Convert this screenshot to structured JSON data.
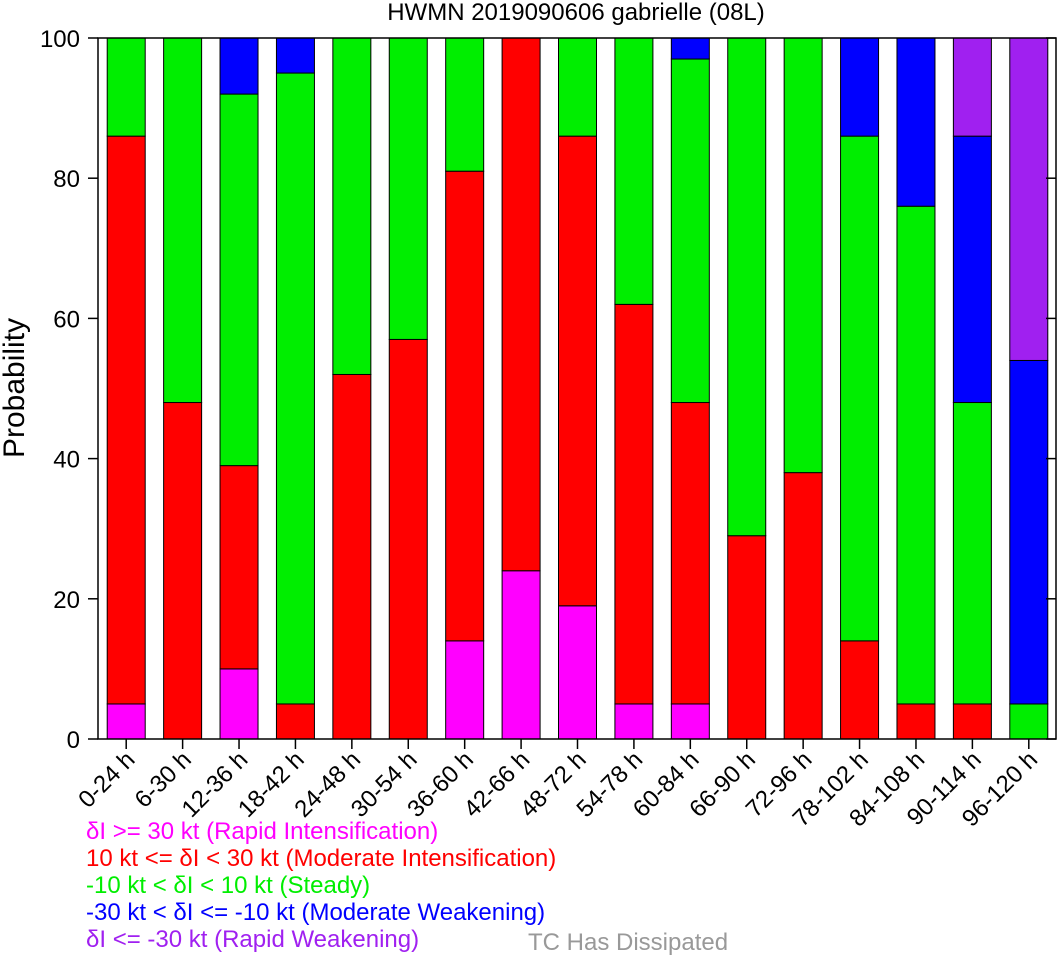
{
  "chart_data": {
    "type": "bar",
    "stacked": true,
    "title": "HWMN 2019090606 gabrielle (08L)",
    "xlabel": "",
    "ylabel": "Probability",
    "ylim": [
      0,
      100
    ],
    "yticks": [
      "0",
      "20",
      "40",
      "60",
      "80",
      "100"
    ],
    "categories": [
      "0-24 h",
      "6-30 h",
      "12-36 h",
      "18-42 h",
      "24-48 h",
      "30-54 h",
      "36-60 h",
      "42-66 h",
      "48-72 h",
      "54-78 h",
      "60-84 h",
      "66-90 h",
      "72-96 h",
      "78-102 h",
      "84-108 h",
      "90-114 h",
      "96-120 h"
    ],
    "series": [
      {
        "name": "δI >= 30 kt (Rapid Intensification)",
        "color": "#ff00ff",
        "values": [
          5,
          0,
          10,
          0,
          0,
          0,
          14,
          24,
          19,
          5,
          5,
          0,
          0,
          0,
          0,
          0,
          0
        ]
      },
      {
        "name": "10 kt <= δI < 30 kt (Moderate Intensification)",
        "color": "#ff0000",
        "values": [
          81,
          48,
          29,
          5,
          52,
          57,
          67,
          76,
          67,
          57,
          43,
          29,
          38,
          14,
          5,
          5,
          0
        ]
      },
      {
        "name": "-10 kt < δI < 10 kt (Steady)",
        "color": "#00ee00",
        "values": [
          14,
          52,
          53,
          90,
          48,
          43,
          19,
          0,
          14,
          38,
          49,
          71,
          62,
          72,
          71,
          43,
          5
        ]
      },
      {
        "name": "-30 kt < δI <= -10 kt (Moderate Weakening)",
        "color": "#0000ff",
        "values": [
          0,
          0,
          8,
          5,
          0,
          0,
          0,
          0,
          0,
          0,
          3,
          0,
          0,
          14,
          24,
          38,
          49
        ]
      },
      {
        "name": "δI <= -30 kt (Rapid Weakening)",
        "color": "#a020f0",
        "values": [
          0,
          0,
          0,
          0,
          0,
          0,
          0,
          0,
          0,
          0,
          0,
          0,
          0,
          0,
          0,
          14,
          46
        ]
      }
    ],
    "legend_note": {
      "text": "TC Has Dissipated",
      "color": "#999999"
    },
    "grid": false,
    "legend_position": "bottom-left"
  }
}
